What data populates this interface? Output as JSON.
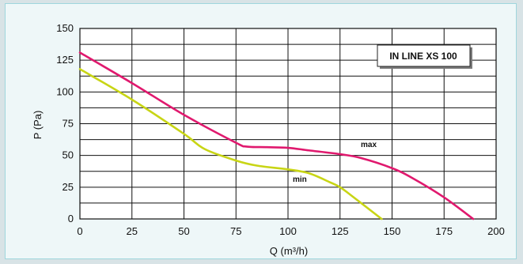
{
  "chart_data": {
    "type": "line",
    "xlabel": "Q (m³/h)",
    "ylabel": "P (Pa)",
    "xlim": [
      0,
      200
    ],
    "ylim": [
      0,
      150
    ],
    "x_ticks": [
      "0",
      "25",
      "50",
      "75",
      "100",
      "125",
      "150",
      "175",
      "200"
    ],
    "y_ticks": [
      "0",
      "25",
      "50",
      "75",
      "100",
      "125",
      "150"
    ],
    "grid": true,
    "annotation": "IN LINE XS 100",
    "series": [
      {
        "name": "max",
        "color": "#e0196e",
        "points": [
          [
            0,
            131
          ],
          [
            25,
            107
          ],
          [
            50,
            82
          ],
          [
            75,
            60
          ],
          [
            80,
            57
          ],
          [
            90,
            56.5
          ],
          [
            100,
            56
          ],
          [
            110,
            54
          ],
          [
            125,
            51
          ],
          [
            135,
            48
          ],
          [
            150,
            40
          ],
          [
            160,
            32
          ],
          [
            175,
            17
          ],
          [
            189,
            0
          ]
        ]
      },
      {
        "name": "min",
        "color": "#c8d515",
        "points": [
          [
            0,
            118
          ],
          [
            25,
            94
          ],
          [
            50,
            67
          ],
          [
            60,
            55
          ],
          [
            75,
            46
          ],
          [
            85,
            42
          ],
          [
            100,
            39
          ],
          [
            110,
            36
          ],
          [
            120,
            29
          ],
          [
            125,
            25
          ],
          [
            130,
            19
          ],
          [
            145,
            0
          ]
        ]
      }
    ]
  }
}
